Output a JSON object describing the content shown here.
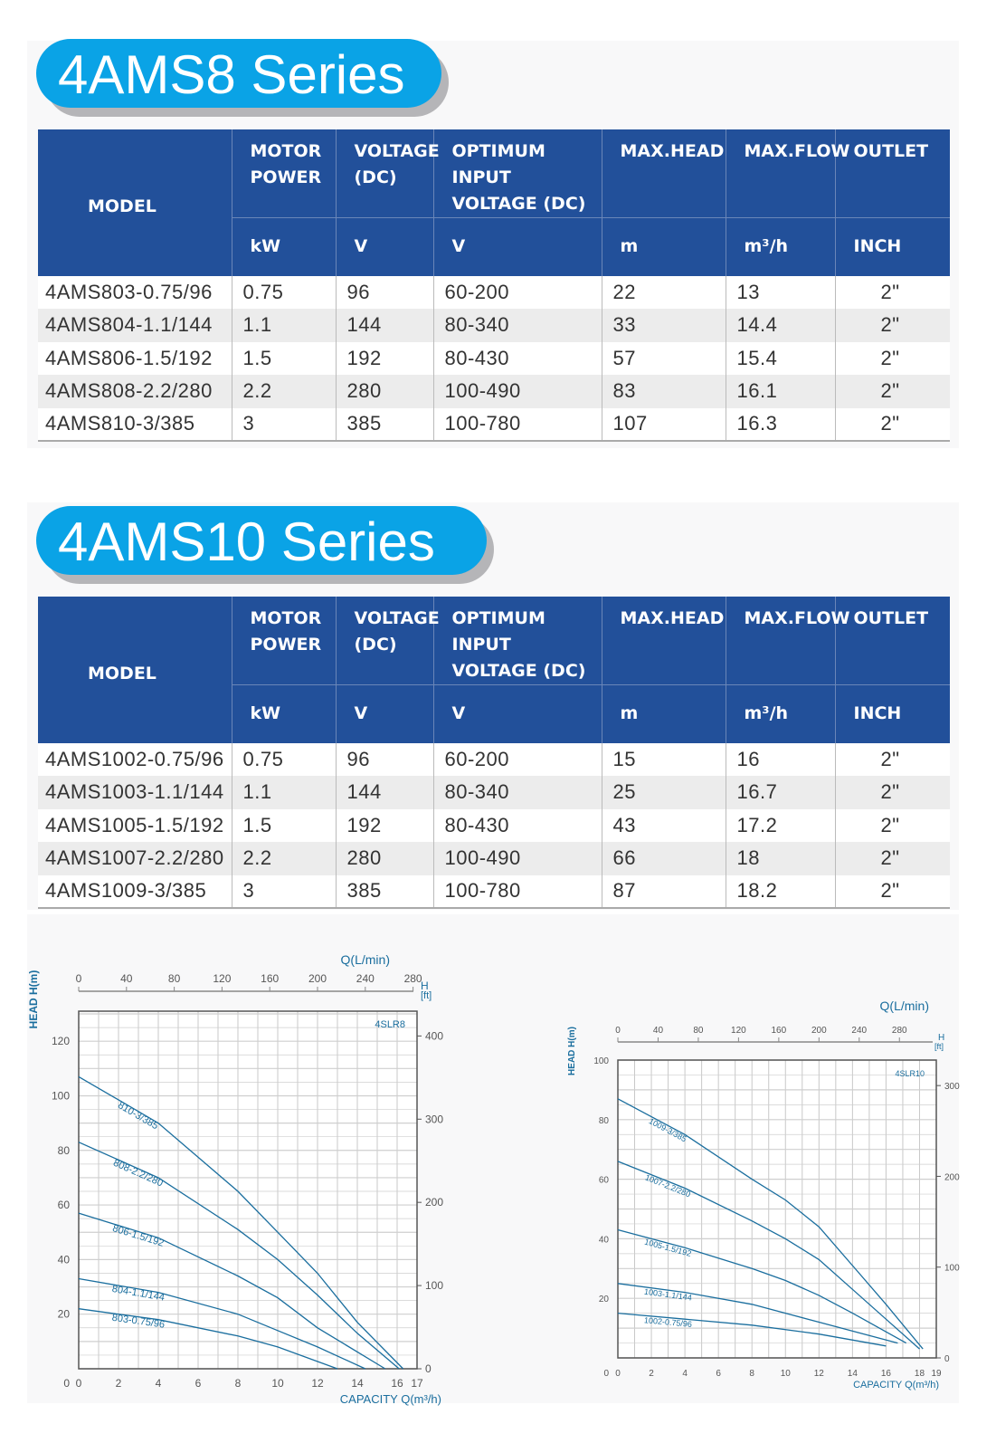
{
  "columns": {
    "model": "MODEL",
    "motor_power": "MOTOR POWER",
    "voltage": "VOLTAGE (DC)",
    "optimum": "OPTIMUM INPUT VOLTAGE (DC)",
    "max_head": "MAX.HEAD",
    "max_flow": "MAX.FLOW",
    "outlet": "OUTLET"
  },
  "units": {
    "motor_power": "kW",
    "voltage": "V",
    "optimum": "V",
    "max_head": "m",
    "max_flow": "m³/h",
    "outlet": "INCH"
  },
  "series": [
    {
      "title": "4AMS8 Series",
      "rows": [
        [
          "4AMS803-0.75/96",
          "0.75",
          "96",
          "60-200",
          "22",
          "13",
          "2\""
        ],
        [
          "4AMS804-1.1/144",
          "1.1",
          "144",
          "80-340",
          "33",
          "14.4",
          "2\""
        ],
        [
          "4AMS806-1.5/192",
          "1.5",
          "192",
          "80-430",
          "57",
          "15.4",
          "2\""
        ],
        [
          "4AMS808-2.2/280",
          "2.2",
          "280",
          "100-490",
          "83",
          "16.1",
          "2\""
        ],
        [
          "4AMS810-3/385",
          "3",
          "385",
          "100-780",
          "107",
          "16.3",
          "2\""
        ]
      ]
    },
    {
      "title": "4AMS10 Series",
      "rows": [
        [
          "4AMS1002-0.75/96",
          "0.75",
          "96",
          "60-200",
          "15",
          "16",
          "2\""
        ],
        [
          "4AMS1003-1.1/144",
          "1.1",
          "144",
          "80-340",
          "25",
          "16.7",
          "2\""
        ],
        [
          "4AMS1005-1.5/192",
          "1.5",
          "192",
          "80-430",
          "43",
          "17.2",
          "2\""
        ],
        [
          "4AMS1007-2.2/280",
          "2.2",
          "280",
          "100-490",
          "66",
          "18",
          "2\""
        ],
        [
          "4AMS1009-3/385",
          "3",
          "385",
          "100-780",
          "87",
          "18.2",
          "2\""
        ]
      ]
    }
  ],
  "chart_data": [
    {
      "type": "line",
      "label": "4SLR8",
      "xlabel": "CAPACITY Q(m³/h)",
      "x2label": "Q(L/min)",
      "ylabel": "HEAD H(m)",
      "y2label": "H [ft]",
      "xlim": [
        0,
        17
      ],
      "ylim": [
        0,
        131
      ],
      "xticks": [
        0,
        2,
        4,
        6,
        8,
        10,
        12,
        14,
        16,
        17
      ],
      "x2ticks": [
        0,
        40,
        80,
        120,
        160,
        200,
        240,
        280
      ],
      "yticks": [
        0,
        20,
        40,
        60,
        80,
        100,
        120
      ],
      "y2ticks": [
        0,
        100,
        200,
        300,
        400
      ],
      "grid": true,
      "color": "#1a6e9e",
      "series": [
        {
          "name": "810-3/385",
          "points": [
            [
              0,
              107
            ],
            [
              4,
              90
            ],
            [
              8,
              65
            ],
            [
              10,
              50
            ],
            [
              12,
              35
            ],
            [
              14,
              17
            ],
            [
              16.3,
              0
            ]
          ]
        },
        {
          "name": "808-2.2/280",
          "points": [
            [
              0,
              83
            ],
            [
              4,
              70
            ],
            [
              8,
              51
            ],
            [
              10,
              40
            ],
            [
              12,
              27
            ],
            [
              14,
              13
            ],
            [
              16.1,
              0
            ]
          ]
        },
        {
          "name": "806-1.5/192",
          "points": [
            [
              0,
              57
            ],
            [
              4,
              48
            ],
            [
              8,
              34
            ],
            [
              10,
              26
            ],
            [
              12,
              15
            ],
            [
              15.4,
              0
            ]
          ]
        },
        {
          "name": "804-1.1/144",
          "points": [
            [
              0,
              33
            ],
            [
              4,
              28
            ],
            [
              8,
              20
            ],
            [
              10,
              14
            ],
            [
              12,
              8
            ],
            [
              14.4,
              0
            ]
          ]
        },
        {
          "name": "803-0.75/96",
          "points": [
            [
              0,
              22
            ],
            [
              4,
              18
            ],
            [
              8,
              12
            ],
            [
              10,
              8
            ],
            [
              13,
              0
            ]
          ]
        }
      ]
    },
    {
      "type": "line",
      "label": "4SLR10",
      "xlabel": "CAPACITY Q(m³/h)",
      "x2label": "Q(L/min)",
      "ylabel": "HEAD H(m)",
      "y2label": "H [ft]",
      "xlim": [
        0,
        19
      ],
      "ylim": [
        0,
        100
      ],
      "xticks": [
        0,
        2,
        4,
        6,
        8,
        10,
        12,
        14,
        16,
        18,
        19
      ],
      "x2ticks": [
        0,
        40,
        80,
        120,
        160,
        200,
        240,
        280
      ],
      "yticks": [
        0,
        20,
        40,
        60,
        80,
        100
      ],
      "y2ticks": [
        0,
        100,
        200,
        300
      ],
      "grid": true,
      "color": "#1a6e9e",
      "series": [
        {
          "name": "1009-3/385",
          "points": [
            [
              0,
              87
            ],
            [
              4,
              75
            ],
            [
              8,
              60
            ],
            [
              10,
              53
            ],
            [
              12,
              44
            ],
            [
              14,
              31
            ],
            [
              16,
              18
            ],
            [
              18.2,
              3
            ]
          ]
        },
        {
          "name": "1007-2.2/280",
          "points": [
            [
              0,
              66
            ],
            [
              4,
              57
            ],
            [
              8,
              46
            ],
            [
              10,
              40
            ],
            [
              12,
              33
            ],
            [
              14,
              23
            ],
            [
              16,
              13
            ],
            [
              18,
              3
            ]
          ]
        },
        {
          "name": "1005-1.5/192",
          "points": [
            [
              0,
              43
            ],
            [
              4,
              37
            ],
            [
              8,
              30
            ],
            [
              10,
              26
            ],
            [
              12,
              21
            ],
            [
              14,
              15
            ],
            [
              17.2,
              5
            ]
          ]
        },
        {
          "name": "1003-1.1/144",
          "points": [
            [
              0,
              25
            ],
            [
              4,
              22
            ],
            [
              8,
              18
            ],
            [
              12,
              12
            ],
            [
              16.7,
              5
            ]
          ]
        },
        {
          "name": "1002-0.75/96",
          "points": [
            [
              0,
              15
            ],
            [
              4,
              13
            ],
            [
              8,
              11
            ],
            [
              12,
              8
            ],
            [
              16,
              4
            ]
          ]
        }
      ]
    }
  ]
}
